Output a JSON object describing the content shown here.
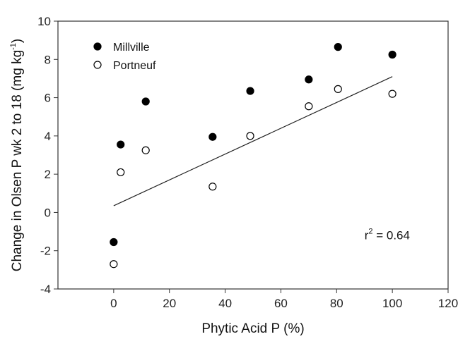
{
  "chart_data": {
    "type": "scatter",
    "title": "",
    "xlabel": "Phytic Acid P (%)",
    "ylabel_main": "Change in Olsen P wk 2 to 18 (mg kg",
    "ylabel_sup": "-1",
    "ylabel_close": ")",
    "xlim": [
      -20,
      120
    ],
    "ylim": [
      -4,
      10
    ],
    "xticks": [
      0,
      20,
      40,
      60,
      80,
      100,
      120
    ],
    "yticks": [
      -4,
      -2,
      0,
      2,
      4,
      6,
      8,
      10
    ],
    "grid": false,
    "legend_position": "top-left",
    "series": [
      {
        "name": "Millville",
        "marker": "filled-circle",
        "color": "#000000",
        "x": [
          0,
          2.5,
          11.5,
          35.5,
          49,
          70,
          80.5,
          100
        ],
        "y": [
          -1.55,
          3.55,
          5.8,
          3.95,
          6.35,
          6.95,
          8.65,
          8.25
        ]
      },
      {
        "name": "Portneuf",
        "marker": "open-circle",
        "color": "#000000",
        "x": [
          0,
          2.5,
          11.5,
          35.5,
          49,
          70,
          80.5,
          100
        ],
        "y": [
          -2.7,
          2.1,
          3.25,
          1.35,
          4.0,
          5.55,
          6.45,
          6.2
        ]
      }
    ],
    "regression_line": {
      "x": [
        0,
        100
      ],
      "y": [
        0.35,
        7.1
      ]
    },
    "annotation": {
      "base": "r",
      "sup": "2",
      "rest": " = 0.64",
      "x": 90,
      "y": -1.4
    }
  }
}
